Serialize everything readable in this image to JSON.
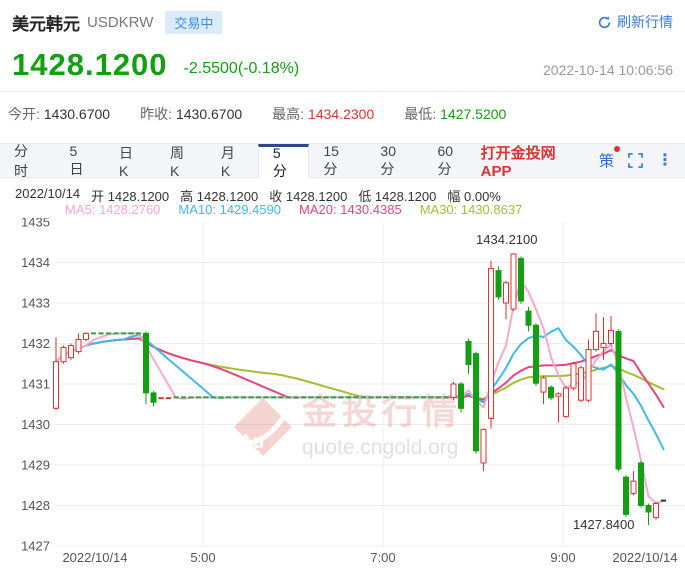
{
  "colors": {
    "up": "#e03232",
    "down": "#12a012",
    "flat_dash": "#2ba245",
    "dark": "#333333",
    "accent_blue": "#3a7bd5",
    "ma5": "#f9a8c9",
    "ma10": "#41b9e9",
    "ma20": "#e8447f",
    "ma30": "#9fc131"
  },
  "header": {
    "title": "美元韩元",
    "symbol": "USDKRW",
    "status_badge": "交易中",
    "refresh_label": "刷新行情",
    "price": "1428.1200",
    "change": "-2.5500(-0.18%)",
    "timestamp": "2022-10-14 10:06:56"
  },
  "stats": {
    "items": [
      {
        "label": "今开:",
        "value": "1430.6700",
        "tone": "dark"
      },
      {
        "label": "昨收:",
        "value": "1430.6700",
        "tone": "dark"
      },
      {
        "label": "最高:",
        "value": "1434.2300",
        "tone": "up"
      },
      {
        "label": "最低:",
        "value": "1427.5200",
        "tone": "down"
      }
    ]
  },
  "tabs": {
    "items": [
      {
        "key": "minute",
        "label": "分时",
        "active": false
      },
      {
        "key": "5day",
        "label": "5日",
        "active": false
      },
      {
        "key": "daily-k",
        "label": "日K",
        "active": false
      },
      {
        "key": "week-k",
        "label": "周K",
        "active": false
      },
      {
        "key": "month-k",
        "label": "月K",
        "active": false
      },
      {
        "key": "5min",
        "label": "5分",
        "active": true
      },
      {
        "key": "15min",
        "label": "15分",
        "active": false
      },
      {
        "key": "30min",
        "label": "30分",
        "active": false
      },
      {
        "key": "60min",
        "label": "60分",
        "active": false
      }
    ],
    "app_link": "打开金投网APP",
    "strategy_label": "策"
  },
  "info_bar": {
    "date": "2022/10/14",
    "fields": [
      {
        "label": "开",
        "value": "1428.1200"
      },
      {
        "label": "高",
        "value": "1428.1200"
      },
      {
        "label": "收",
        "value": "1428.1200"
      },
      {
        "label": "低",
        "value": "1428.1200"
      },
      {
        "label": "幅",
        "value": "0.00%"
      }
    ]
  },
  "ma_bar": {
    "items": [
      {
        "label": "MA5:",
        "value": "1428.2760",
        "color_key": "ma5"
      },
      {
        "label": "MA10:",
        "value": "1429.4590",
        "color_key": "ma10"
      },
      {
        "label": "MA20:",
        "value": "1430.4385",
        "color_key": "ma20"
      },
      {
        "label": "MA30:",
        "value": "1430.8637",
        "color_key": "ma30"
      }
    ]
  },
  "watermark": {
    "logo": "Au",
    "brand": "金投行情",
    "url": "quote.cngold.org"
  },
  "chart_data": {
    "type": "candlestick",
    "ylim": [
      1427,
      1435
    ],
    "y_ticks": [
      1435,
      1434,
      1433,
      1432,
      1431,
      1430,
      1429,
      1428,
      1427
    ],
    "x_ticks": [
      "2022/10/14",
      "5:00",
      "7:00",
      "9:00",
      "2022/10/14"
    ],
    "ma_periods": [
      30,
      20,
      10,
      5
    ],
    "ma_color_keys": [
      "ma30",
      "ma20",
      "ma10",
      "ma5"
    ],
    "annotations": [
      {
        "text": "1434.2100",
        "candle_index": 61,
        "position": "above"
      },
      {
        "text": "1427.8400",
        "candle_index": 79,
        "position": "below"
      }
    ],
    "candles": [
      [
        1430.4,
        1432.15,
        1430.35,
        1431.55
      ],
      [
        1431.55,
        1431.95,
        1431.5,
        1431.9
      ],
      [
        1431.65,
        1432.0,
        1431.6,
        1431.95
      ],
      [
        1431.8,
        1432.25,
        1431.75,
        1432.1
      ],
      [
        1432.1,
        1432.28,
        1432.05,
        1432.25
      ],
      [
        1432.25,
        1432.25,
        1432.25,
        1432.25
      ],
      [
        1432.25,
        1432.25,
        1432.25,
        1432.25
      ],
      [
        1432.25,
        1432.25,
        1432.25,
        1432.25
      ],
      [
        1432.25,
        1432.25,
        1432.25,
        1432.25
      ],
      [
        1432.25,
        1432.25,
        1432.25,
        1432.25
      ],
      [
        1432.25,
        1432.25,
        1432.25,
        1432.25
      ],
      [
        1432.25,
        1432.25,
        1432.25,
        1432.25
      ],
      [
        1432.25,
        1432.3,
        1430.5,
        1430.78
      ],
      [
        1430.78,
        1430.82,
        1430.45,
        1430.55
      ],
      [
        1430.65,
        1430.65,
        1430.65,
        1430.65,
        "r"
      ],
      [
        1430.65,
        1430.65,
        1430.65,
        1430.65,
        "r"
      ],
      [
        1430.67,
        1430.67,
        1430.67,
        1430.67
      ],
      [
        1430.67,
        1430.67,
        1430.67,
        1430.67
      ],
      [
        1430.67,
        1430.67,
        1430.67,
        1430.67
      ],
      [
        1430.67,
        1430.67,
        1430.67,
        1430.67
      ],
      [
        1430.67,
        1430.67,
        1430.67,
        1430.67
      ],
      [
        1430.67,
        1430.67,
        1430.67,
        1430.67
      ],
      [
        1430.67,
        1430.67,
        1430.67,
        1430.67
      ],
      [
        1430.67,
        1430.67,
        1430.67,
        1430.67
      ],
      [
        1430.67,
        1430.67,
        1430.67,
        1430.67
      ],
      [
        1430.67,
        1430.67,
        1430.67,
        1430.67
      ],
      [
        1430.67,
        1430.67,
        1430.67,
        1430.67
      ],
      [
        1430.67,
        1430.67,
        1430.67,
        1430.67
      ],
      [
        1430.67,
        1430.67,
        1430.67,
        1430.67
      ],
      [
        1430.67,
        1430.67,
        1430.67,
        1430.67
      ],
      [
        1430.67,
        1430.67,
        1430.67,
        1430.67
      ],
      [
        1430.67,
        1430.67,
        1430.67,
        1430.67
      ],
      [
        1430.67,
        1430.67,
        1430.67,
        1430.67
      ],
      [
        1430.67,
        1430.67,
        1430.67,
        1430.67
      ],
      [
        1430.67,
        1430.67,
        1430.67,
        1430.67
      ],
      [
        1430.67,
        1430.67,
        1430.67,
        1430.67
      ],
      [
        1430.67,
        1430.67,
        1430.67,
        1430.67
      ],
      [
        1430.67,
        1430.67,
        1430.67,
        1430.67
      ],
      [
        1430.67,
        1430.67,
        1430.67,
        1430.67
      ],
      [
        1430.67,
        1430.67,
        1430.67,
        1430.67
      ],
      [
        1430.67,
        1430.67,
        1430.67,
        1430.67
      ],
      [
        1430.67,
        1430.67,
        1430.67,
        1430.67
      ],
      [
        1430.67,
        1430.67,
        1430.67,
        1430.67
      ],
      [
        1430.67,
        1430.67,
        1430.67,
        1430.67
      ],
      [
        1430.67,
        1430.67,
        1430.67,
        1430.67
      ],
      [
        1430.67,
        1430.67,
        1430.67,
        1430.67
      ],
      [
        1430.67,
        1430.67,
        1430.67,
        1430.67
      ],
      [
        1430.67,
        1430.67,
        1430.67,
        1430.67
      ],
      [
        1430.67,
        1430.67,
        1430.67,
        1430.67
      ],
      [
        1430.67,
        1430.67,
        1430.67,
        1430.67
      ],
      [
        1430.67,
        1430.67,
        1430.67,
        1430.67
      ],
      [
        1430.67,
        1430.67,
        1430.67,
        1430.67
      ],
      [
        1430.67,
        1430.67,
        1430.67,
        1430.67
      ],
      [
        1430.67,
        1431.05,
        1430.6,
        1431.0
      ],
      [
        1431.0,
        1431.05,
        1430.3,
        1430.4
      ],
      [
        1432.05,
        1432.12,
        1431.25,
        1431.48
      ],
      [
        1431.75,
        1431.8,
        1429.28,
        1429.35
      ],
      [
        1429.05,
        1429.9,
        1428.85,
        1429.88
      ],
      [
        1430.15,
        1434.05,
        1429.9,
        1433.85
      ],
      [
        1433.8,
        1433.9,
        1433.08,
        1433.15
      ],
      [
        1433.0,
        1433.55,
        1432.6,
        1433.5
      ],
      [
        1432.85,
        1434.23,
        1432.8,
        1434.21
      ],
      [
        1434.1,
        1434.15,
        1432.98,
        1433.05
      ],
      [
        1432.8,
        1432.9,
        1432.3,
        1432.45
      ],
      [
        1432.45,
        1432.5,
        1430.95,
        1431.02
      ],
      [
        1430.8,
        1431.2,
        1430.5,
        1431.15
      ],
      [
        1430.92,
        1430.97,
        1430.6,
        1430.66
      ],
      [
        1430.7,
        1430.8,
        1430.05,
        1430.76
      ],
      [
        1430.2,
        1430.95,
        1430.15,
        1430.9
      ],
      [
        1430.9,
        1431.55,
        1430.85,
        1431.5
      ],
      [
        1430.6,
        1431.45,
        1430.55,
        1431.4
      ],
      [
        1430.6,
        1432.1,
        1430.55,
        1431.85
      ],
      [
        1431.85,
        1432.75,
        1431.8,
        1432.3
      ],
      [
        1431.9,
        1432.65,
        1431.6,
        1432.0
      ],
      [
        1432.0,
        1432.68,
        1431.95,
        1432.32
      ],
      [
        1432.3,
        1432.35,
        1428.85,
        1428.9
      ],
      [
        1428.7,
        1428.75,
        1427.72,
        1427.78
      ],
      [
        1428.3,
        1428.85,
        1428.25,
        1428.6
      ],
      [
        1429.05,
        1429.1,
        1427.95,
        1428.0
      ],
      [
        1428.0,
        1428.05,
        1427.52,
        1427.84
      ],
      [
        1427.7,
        1428.1,
        1427.65,
        1428.05
      ],
      [
        1428.12,
        1428.12,
        1428.12,
        1428.12,
        "d"
      ]
    ]
  }
}
